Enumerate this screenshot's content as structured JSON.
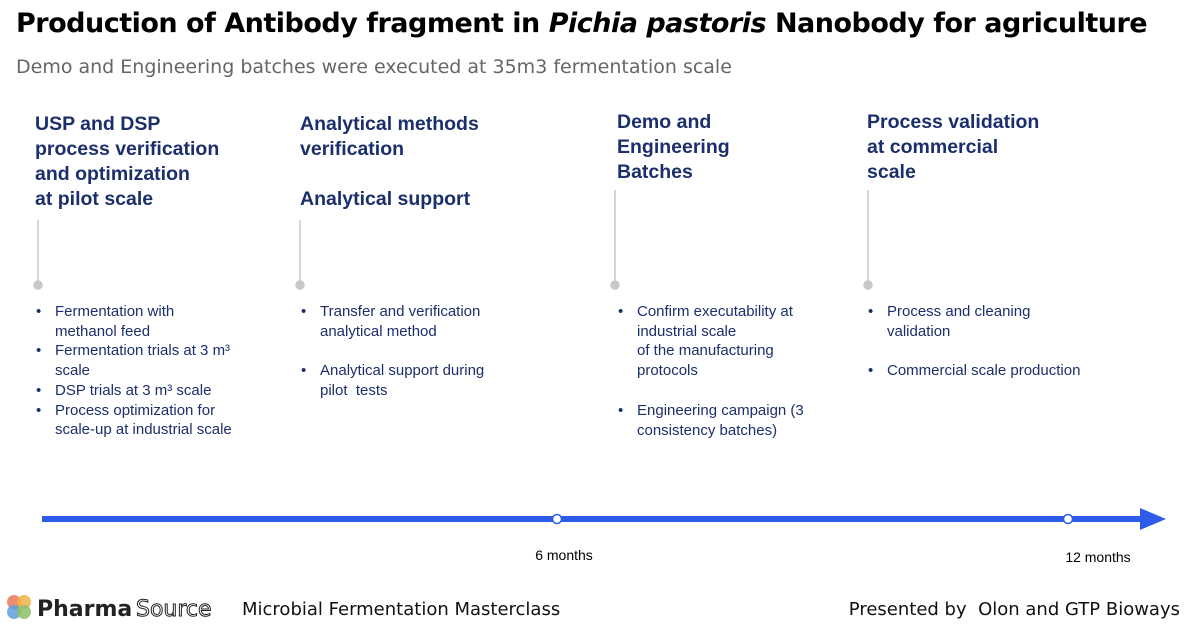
{
  "header": {
    "title": [
      "Production of Antibody fragment in ",
      "Pichia pastoris",
      " Nanobody for agriculture"
    ],
    "subtitle": "Demo and Engineering batches were executed at 35m3 fermentation scale"
  },
  "columns": [
    {
      "heading": [
        [
          "USP and DSP",
          "process verification",
          "and optimization",
          "at pilot scale"
        ]
      ],
      "bullets": [
        [
          "Fermentation with",
          "methanol feed"
        ],
        [
          "Fermentation trials at 3 m³",
          "scale"
        ],
        [
          "DSP trials at 3 m³ scale"
        ],
        [
          "Process optimization for",
          "scale-up at industrial scale"
        ]
      ]
    },
    {
      "heading": [
        [
          "Analytical methods",
          "verification"
        ],
        [
          "Analytical support"
        ]
      ],
      "bullets": [
        [
          "Transfer and verification",
          "analytical method"
        ],
        [
          "Analytical support during",
          "pilot  tests"
        ]
      ]
    },
    {
      "heading": [
        [
          "Demo and",
          "Engineering",
          "Batches"
        ]
      ],
      "bullets": [
        [
          "Confirm executability at",
          "industrial scale",
          "of the manufacturing",
          "protocols"
        ],
        [
          "Engineering campaign (3",
          "consistency batches)"
        ]
      ]
    },
    {
      "heading": [
        [
          "Process validation",
          "at commercial",
          "scale"
        ]
      ],
      "bullets": [
        [
          "Process and cleaning",
          "validation"
        ],
        [
          "Commercial scale production"
        ]
      ]
    }
  ],
  "timeline": {
    "labels": [
      "6 months",
      "12 months"
    ]
  },
  "footer": {
    "brand": [
      "Pharma",
      "Source"
    ],
    "event": "Microbial Fermentation Masterclass",
    "presenter": "Presented by  Olon and GTP Bioways"
  }
}
